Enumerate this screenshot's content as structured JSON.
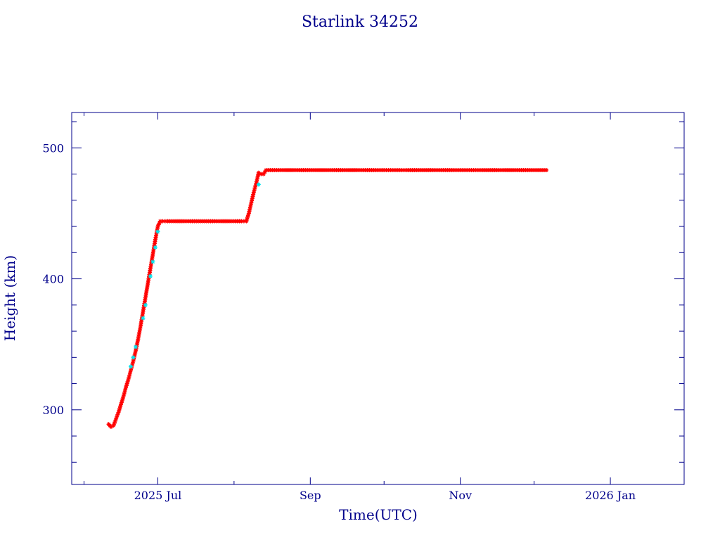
{
  "chart_data": {
    "type": "scatter",
    "title": "Starlink 34252",
    "xlabel": "Time(UTC)",
    "ylabel": "Height (km)",
    "xlim": [
      "2025-05-27",
      "2026-01-31"
    ],
    "ylim": [
      243,
      527
    ],
    "x_ticks": [
      {
        "date": "2025-07-01",
        "label": "2025 Jul"
      },
      {
        "date": "2025-09-01",
        "label": "Sep"
      },
      {
        "date": "2025-11-01",
        "label": "Nov"
      },
      {
        "date": "2026-01-01",
        "label": "2026 Jan"
      }
    ],
    "x_minor_ticks": [
      "2025-06-01",
      "2025-08-01",
      "2025-10-01",
      "2025-12-01"
    ],
    "y_ticks": [
      300,
      400,
      500
    ],
    "y_minor_step": 20,
    "colors": {
      "axis": "#00008b",
      "series_main": "#ff0000",
      "series_alt": "#00e5ee"
    },
    "series": [
      {
        "marker": "star",
        "color": "#ff0000",
        "points": [
          [
            "2025-06-11",
            289
          ],
          [
            "2025-06-12",
            287
          ],
          [
            "2025-06-13",
            288
          ],
          [
            "2025-06-14",
            293
          ],
          [
            "2025-06-15",
            298
          ],
          [
            "2025-06-16",
            304
          ],
          [
            "2025-06-17",
            310
          ],
          [
            "2025-06-18",
            317
          ],
          [
            "2025-06-19",
            323
          ],
          [
            "2025-06-20",
            330
          ],
          [
            "2025-06-21",
            337
          ],
          [
            "2025-06-22",
            345
          ],
          [
            "2025-06-23",
            354
          ],
          [
            "2025-06-24",
            364
          ],
          [
            "2025-06-25",
            375
          ],
          [
            "2025-06-26",
            386
          ],
          [
            "2025-06-27",
            397
          ],
          [
            "2025-06-28",
            408
          ],
          [
            "2025-06-29",
            419
          ],
          [
            "2025-06-30",
            430
          ],
          [
            "2025-07-01",
            440
          ],
          [
            "2025-07-02",
            444
          ],
          [
            "2025-07-05",
            444
          ],
          [
            "2025-07-10",
            444
          ],
          [
            "2025-07-15",
            444
          ],
          [
            "2025-07-20",
            444
          ],
          [
            "2025-07-25",
            444
          ],
          [
            "2025-07-30",
            444
          ],
          [
            "2025-08-04",
            444
          ],
          [
            "2025-08-06",
            444
          ],
          [
            "2025-08-07",
            450
          ],
          [
            "2025-08-08",
            458
          ],
          [
            "2025-08-09",
            466
          ],
          [
            "2025-08-10",
            473
          ],
          [
            "2025-08-11",
            481
          ],
          [
            "2025-08-12",
            480
          ],
          [
            "2025-08-13",
            480
          ],
          [
            "2025-08-14",
            483
          ],
          [
            "2025-08-20",
            483
          ],
          [
            "2025-08-30",
            483
          ],
          [
            "2025-09-10",
            483
          ],
          [
            "2025-09-20",
            483
          ],
          [
            "2025-10-01",
            483
          ],
          [
            "2025-10-10",
            483
          ],
          [
            "2025-10-20",
            483
          ],
          [
            "2025-11-01",
            483
          ],
          [
            "2025-11-10",
            483
          ],
          [
            "2025-11-20",
            483
          ],
          [
            "2025-11-30",
            483
          ],
          [
            "2025-12-06",
            483
          ]
        ]
      },
      {
        "marker": "star",
        "color": "#00e5ee",
        "points": [
          [
            "2025-06-20",
            333
          ],
          [
            "2025-06-21",
            340
          ],
          [
            "2025-06-22",
            348
          ],
          [
            "2025-06-25",
            370
          ],
          [
            "2025-06-26",
            380
          ],
          [
            "2025-06-28",
            402
          ],
          [
            "2025-06-29",
            413
          ],
          [
            "2025-06-30",
            424
          ],
          [
            "2025-07-01",
            436
          ],
          [
            "2025-08-11",
            472
          ]
        ]
      }
    ]
  }
}
